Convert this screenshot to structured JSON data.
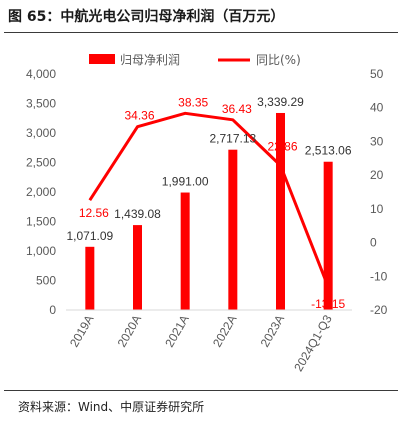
{
  "figure": {
    "title": "图 65：中航光电公司归母净利润（百万元）",
    "source": "资料来源：Wind、中原证券研究所"
  },
  "colors": {
    "bar": "#ff0000",
    "line": "#ff0000",
    "line_label": "#ff0000",
    "axis_text": "#595959",
    "bar_label": "#333333"
  },
  "chart_data": {
    "type": "bar",
    "title": "",
    "categories": [
      "2019A",
      "2020A",
      "2021A",
      "2022A",
      "2023A",
      "2024Q1-Q3"
    ],
    "series": [
      {
        "name": "归母净利润",
        "type": "bar",
        "axis": "left",
        "values": [
          1071.09,
          1439.08,
          1991.0,
          2717.13,
          3339.29,
          2513.06
        ],
        "labels": [
          "1,071.09",
          "1,439.08",
          "1,991.00",
          "2,717.13",
          "3,339.29",
          "2,513.06"
        ]
      },
      {
        "name": "同比(%)",
        "type": "line",
        "axis": "right",
        "values": [
          12.56,
          34.36,
          38.35,
          36.43,
          22.86,
          -13.15
        ],
        "labels": [
          "12.56",
          "34.36",
          "38.35",
          "36.43",
          "22.86",
          "-13.15"
        ]
      }
    ],
    "y_left": {
      "lim": [
        0,
        4000
      ],
      "ticks": [
        0,
        500,
        1000,
        1500,
        2000,
        2500,
        3000,
        3500,
        4000
      ],
      "tick_labels": [
        "0",
        "500",
        "1,000",
        "1,500",
        "2,000",
        "2,500",
        "3,000",
        "3,500",
        "4,000"
      ]
    },
    "y_right": {
      "lim": [
        -20,
        50
      ],
      "ticks": [
        -20,
        -10,
        0,
        10,
        20,
        30,
        40,
        50
      ],
      "tick_labels": [
        "-20",
        "-10",
        "0",
        "10",
        "20",
        "30",
        "40",
        "50"
      ]
    },
    "xlabel": "",
    "ylabel": "",
    "grid": false,
    "legend_position": "top-center"
  }
}
